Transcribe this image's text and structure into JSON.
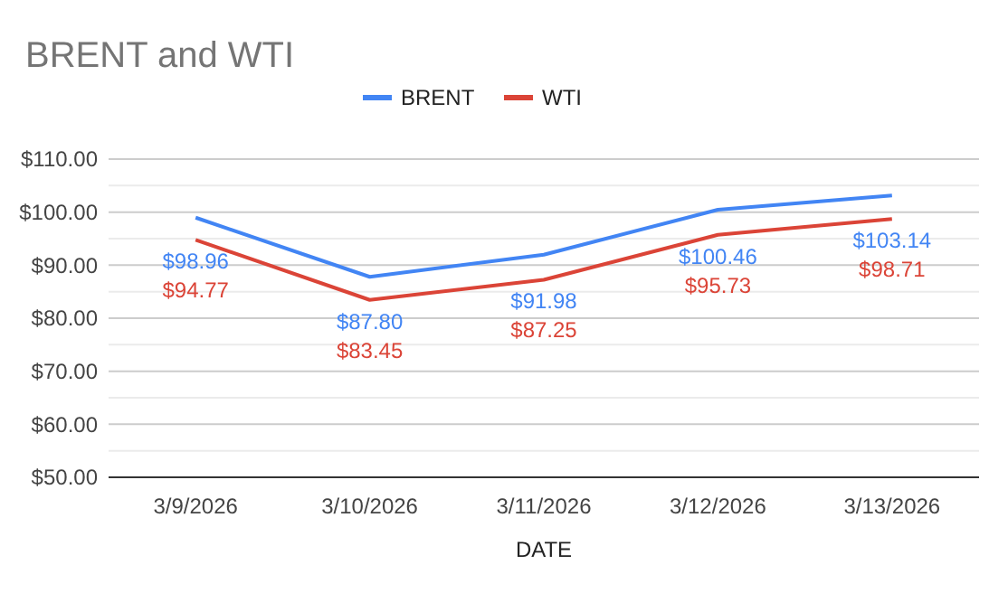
{
  "chart_data": {
    "type": "line",
    "title": "BRENT and WTI",
    "xlabel": "DATE",
    "categories": [
      "3/9/2026",
      "3/10/2026",
      "3/11/2026",
      "3/12/2026",
      "3/13/2026"
    ],
    "series": [
      {
        "name": "BRENT",
        "color": "#4285f4",
        "values": [
          98.96,
          87.8,
          91.98,
          100.46,
          103.14
        ],
        "value_labels": [
          "$98.96",
          "$87.80",
          "$91.98",
          "$100.46",
          "$103.14"
        ]
      },
      {
        "name": "WTI",
        "color": "#db4437",
        "values": [
          94.77,
          83.45,
          87.25,
          95.73,
          98.71
        ],
        "value_labels": [
          "$94.77",
          "$83.45",
          "$87.25",
          "$95.73",
          "$98.71"
        ]
      }
    ],
    "ylim": [
      50,
      110
    ],
    "yticks": [
      {
        "value": 50,
        "label": "$50.00"
      },
      {
        "value": 60,
        "label": "$60.00"
      },
      {
        "value": 70,
        "label": "$70.00"
      },
      {
        "value": 80,
        "label": "$80.00"
      },
      {
        "value": 90,
        "label": "$90.00"
      },
      {
        "value": 100,
        "label": "$100.00"
      },
      {
        "value": 110,
        "label": "$110.00"
      }
    ],
    "grid": true,
    "legend": "top",
    "marker": "none",
    "line_style": "solid"
  }
}
